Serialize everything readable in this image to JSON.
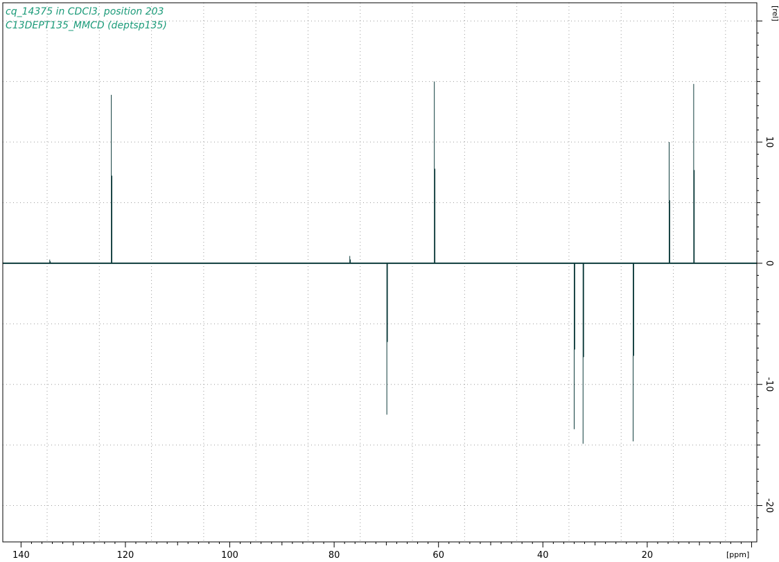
{
  "chart_data": {
    "type": "line",
    "title_lines": [
      "cq_14375 in CDCl3, position 203",
      "C13DEPT135_MMCD (deptsp135)"
    ],
    "xlabel": "[ppm]",
    "ylabel": "[rel]",
    "xlim": [
      143.5,
      -1.0
    ],
    "ylim": [
      -23.0,
      21.5
    ],
    "x_ticks": [
      140,
      120,
      100,
      80,
      60,
      40,
      20
    ],
    "y_ticks": [
      10,
      0,
      -10,
      -20
    ],
    "x_tick_labels": [
      "140",
      "120",
      "100",
      "80",
      "60",
      "40",
      "20"
    ],
    "y_tick_labels": [
      "10",
      "0",
      "-10",
      "-20"
    ],
    "grid": true,
    "series": [
      {
        "peaks": [
          {
            "x": 134.5,
            "y": 0.3
          },
          {
            "x": 122.7,
            "y": 13.9
          },
          {
            "x": 77.0,
            "y": 0.6
          },
          {
            "x": 69.9,
            "y": -12.5
          },
          {
            "x": 60.8,
            "y": 15.0
          },
          {
            "x": 34.0,
            "y": -13.7
          },
          {
            "x": 32.3,
            "y": -14.9
          },
          {
            "x": 22.7,
            "y": -14.7
          },
          {
            "x": 15.8,
            "y": 10.0
          },
          {
            "x": 11.1,
            "y": 14.8
          }
        ]
      }
    ]
  },
  "colors": {
    "title": "#1a9a78",
    "spectrum": "#0d3b3b",
    "axis": "#000000",
    "grid": "#9a9a9a"
  }
}
